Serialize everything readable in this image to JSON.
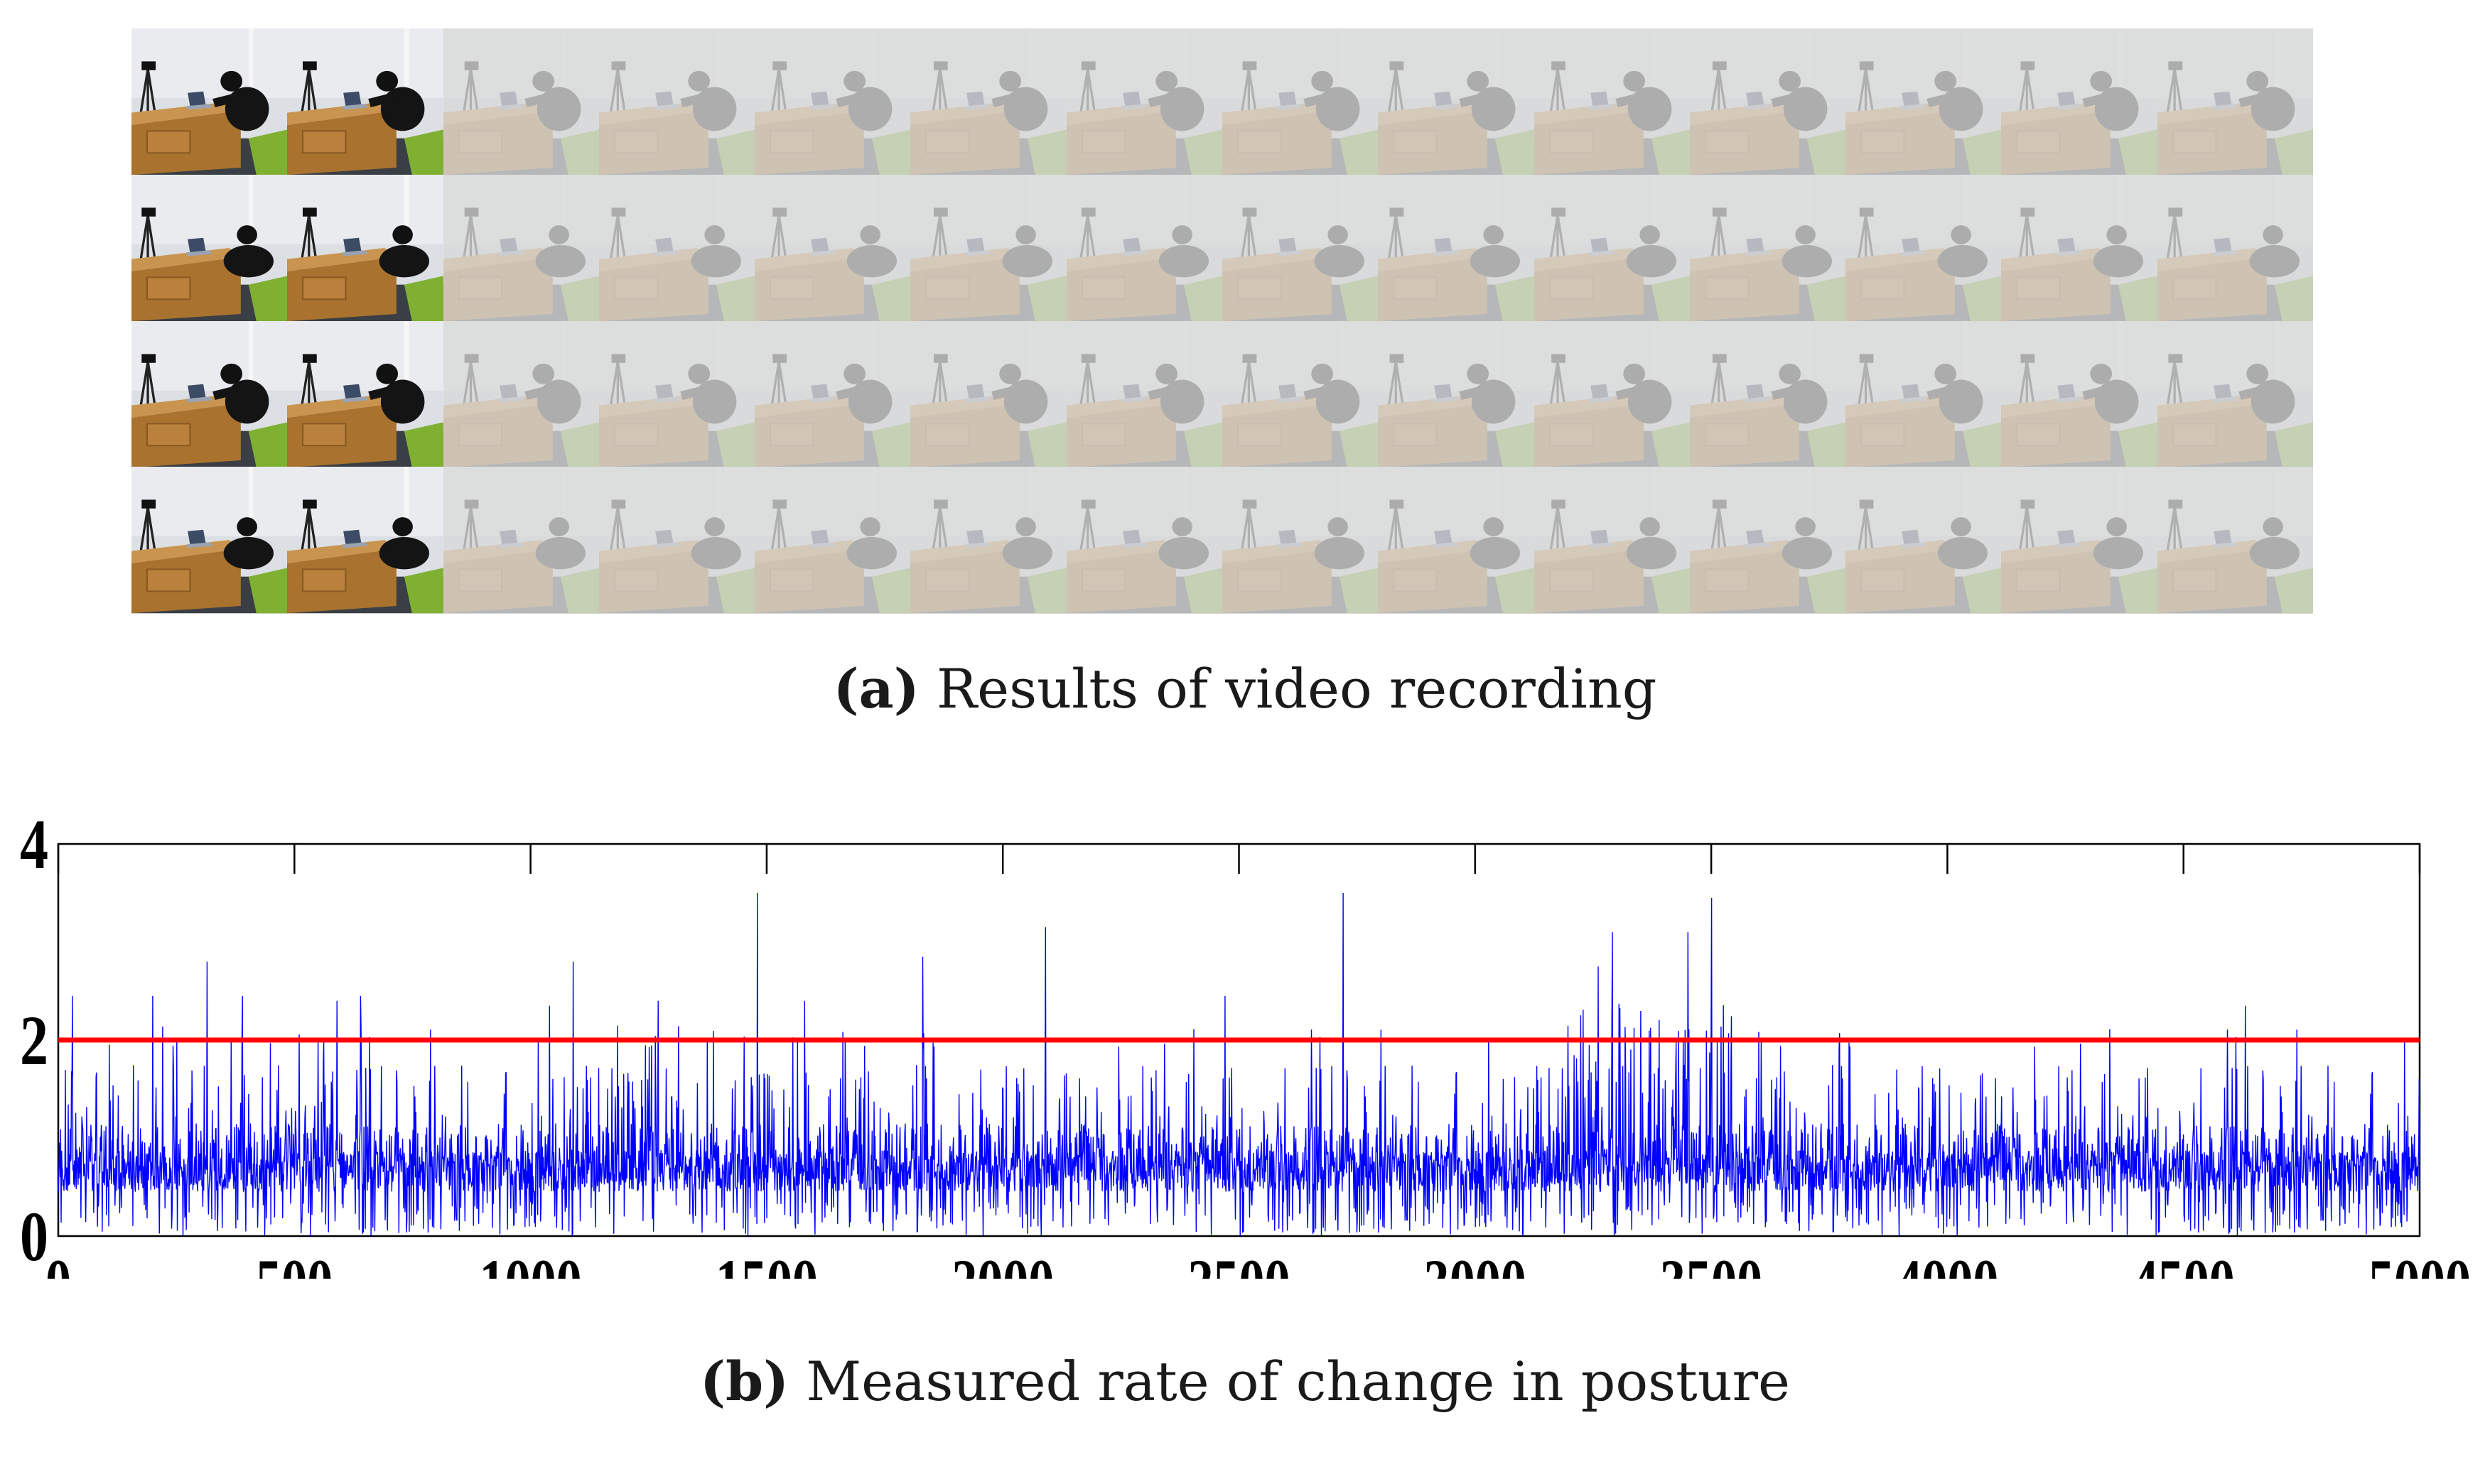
{
  "figure": {
    "panel_a": {
      "label": "(a)",
      "caption": "Results of video recording",
      "rows": 4,
      "columns": 14,
      "full_opacity_columns": 2,
      "faded_overlay_color": "#d9d9d9"
    },
    "panel_b": {
      "label": "(b)",
      "caption": "Measured rate of change in posture"
    }
  },
  "chart_data": {
    "type": "line",
    "title": "",
    "xlabel": "",
    "ylabel": "",
    "xlim": [
      0,
      5000
    ],
    "ylim": [
      0,
      4
    ],
    "x_ticks": [
      0,
      500,
      1000,
      1500,
      2000,
      2500,
      3000,
      3500,
      4000,
      4500,
      5000
    ],
    "y_ticks": [
      0,
      2,
      4
    ],
    "x_tick_labels": [
      "0",
      "500",
      "1000",
      "1500",
      "2000",
      "2500",
      "3000",
      "3500",
      "4000",
      "4500",
      "5000"
    ],
    "y_tick_labels": [
      "0",
      "2",
      "4"
    ],
    "grid": false,
    "legend": "none",
    "series": [
      {
        "color": "#0000ff",
        "sample_count": 5000,
        "typical_range": [
          0.0,
          1.4
        ],
        "peaks": [
          {
            "x": 30,
            "y": 2.45
          },
          {
            "x": 200,
            "y": 2.45
          },
          {
            "x": 315,
            "y": 2.8
          },
          {
            "x": 390,
            "y": 2.45
          },
          {
            "x": 590,
            "y": 2.4
          },
          {
            "x": 640,
            "y": 2.45
          },
          {
            "x": 1040,
            "y": 2.35
          },
          {
            "x": 1090,
            "y": 2.8
          },
          {
            "x": 1270,
            "y": 2.4
          },
          {
            "x": 1480,
            "y": 3.5
          },
          {
            "x": 1580,
            "y": 2.4
          },
          {
            "x": 1830,
            "y": 2.85
          },
          {
            "x": 2090,
            "y": 3.15
          },
          {
            "x": 2470,
            "y": 2.45
          },
          {
            "x": 2720,
            "y": 3.5
          },
          {
            "x": 3260,
            "y": 2.75
          },
          {
            "x": 3290,
            "y": 3.1
          },
          {
            "x": 3450,
            "y": 3.1
          },
          {
            "x": 3500,
            "y": 3.45
          },
          {
            "x": 4630,
            "y": 2.35
          }
        ]
      },
      {
        "color": "#ff0000",
        "values_constant": 2.0
      }
    ]
  }
}
